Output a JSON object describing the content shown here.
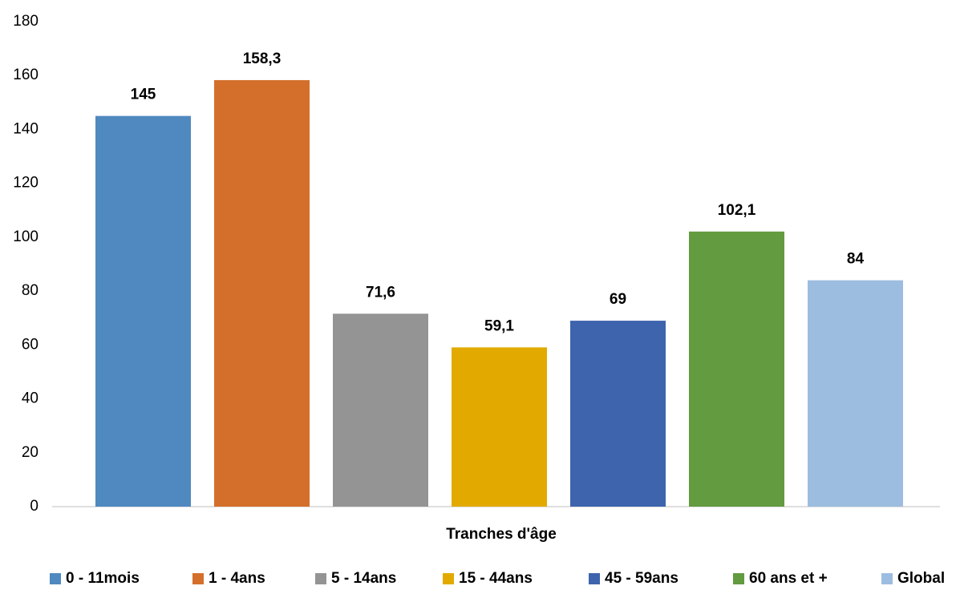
{
  "chart_data": {
    "type": "bar",
    "xlabel": "Tranches d'âge",
    "series": [
      {
        "name": "0 - 11mois",
        "color": "#4f89c0",
        "values": [
          145
        ]
      },
      {
        "name": "1 - 4ans",
        "color": "#d46f2b",
        "values": [
          158.3
        ],
        "value_labels": [
          "158,3"
        ]
      },
      {
        "name": "5 - 14ans",
        "color": "#949494",
        "values": [
          71.6
        ],
        "value_labels": [
          "71,6"
        ]
      },
      {
        "name": "15 - 44ans",
        "color": "#e2aa00",
        "values": [
          59.1
        ],
        "value_labels": [
          "59,1"
        ]
      },
      {
        "name": "45 - 59ans",
        "color": "#3d64ad",
        "values": [
          69
        ]
      },
      {
        "name": "60 ans et +",
        "color": "#629b40",
        "values": [
          102.1
        ],
        "value_labels": [
          "102,1"
        ]
      },
      {
        "name": "Global",
        "color": "#9dbde0",
        "values": [
          84
        ]
      }
    ],
    "ylim": [
      0,
      180
    ],
    "yticks": [
      0,
      20,
      40,
      60,
      80,
      100,
      120,
      140,
      160,
      180
    ],
    "grid": false,
    "legend": "bottom"
  }
}
